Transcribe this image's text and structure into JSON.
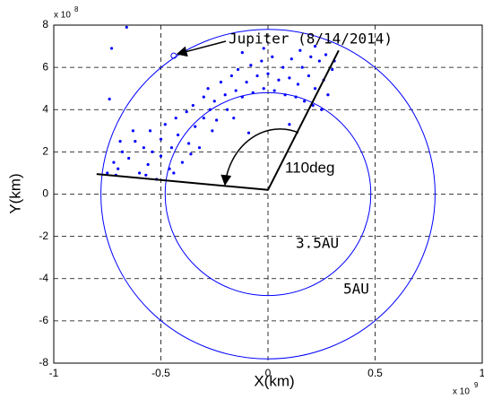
{
  "chart_data": {
    "type": "scatter",
    "x_label": "X(km)",
    "y_label": "Y(km)",
    "x_multiplier": {
      "label": "x 10",
      "exponent": "9"
    },
    "y_multiplier": {
      "label": "x 10",
      "exponent": "8"
    },
    "xlim": [
      -1,
      1
    ],
    "ylim": [
      -8,
      8
    ],
    "xticks": [
      -1,
      -0.5,
      0,
      0.5,
      1
    ],
    "yticks": [
      -8,
      -6,
      -4,
      -2,
      0,
      2,
      4,
      6,
      8
    ],
    "grid": true,
    "series": [
      {
        "color": "#0000ff",
        "x": [
          -0.75,
          -0.72,
          -0.7,
          -0.68,
          -0.73,
          -0.66,
          -0.74,
          -0.65,
          -0.62,
          -0.6,
          -0.58,
          -0.56,
          -0.55,
          -0.52,
          -0.5,
          -0.5,
          -0.48,
          -0.46,
          -0.45,
          -0.43,
          -0.42,
          -0.4,
          -0.38,
          -0.37,
          -0.35,
          -0.34,
          -0.32,
          -0.3,
          -0.3,
          -0.28,
          -0.27,
          -0.25,
          -0.24,
          -0.22,
          -0.2,
          -0.19,
          -0.17,
          -0.15,
          -0.14,
          -0.12,
          -0.1,
          -0.08,
          -0.07,
          -0.05,
          -0.03,
          -0.02,
          0.0,
          0.02,
          0.03,
          0.05,
          0.07,
          0.08,
          0.1,
          0.11,
          0.13,
          0.14,
          0.16,
          0.17,
          0.19,
          0.2,
          0.21,
          0.22,
          0.24,
          0.25,
          0.26,
          0.27,
          0.28,
          0.3,
          0.31,
          -0.44,
          -0.63,
          -0.57,
          -0.36,
          -0.26,
          -0.16,
          -0.09,
          0.1,
          -0.54,
          -0.69,
          -0.71,
          0.15,
          0.22,
          -0.02,
          -0.12
        ],
        "values": [
          1.0,
          1.5,
          1.2,
          2.0,
          6.9,
          7.9,
          4.5,
          1.7,
          2.5,
          1.0,
          2.2,
          1.4,
          3.0,
          0.7,
          1.8,
          2.6,
          3.3,
          1.2,
          2.2,
          3.6,
          2.8,
          1.5,
          3.9,
          2.4,
          4.2,
          3.2,
          2.2,
          4.6,
          3.6,
          5.0,
          4.0,
          4.4,
          3.5,
          5.3,
          4.7,
          4.0,
          5.6,
          4.9,
          5.9,
          4.6,
          5.3,
          6.1,
          4.8,
          5.6,
          6.3,
          5.0,
          5.7,
          6.5,
          4.9,
          5.4,
          6.0,
          4.7,
          5.5,
          6.4,
          4.6,
          5.2,
          6.0,
          4.4,
          5.6,
          6.5,
          4.2,
          5.0,
          6.3,
          4.0,
          5.4,
          6.6,
          4.7,
          5.9,
          6.3,
          1.0,
          3.0,
          0.9,
          1.9,
          3.0,
          3.6,
          2.9,
          3.3,
          2.0,
          2.5,
          0.9,
          6.8,
          7.0,
          6.9,
          6.7
        ]
      }
    ],
    "circles": [
      {
        "label": "3.5AU",
        "r": 0.48
      },
      {
        "label": "5AU",
        "r": 0.78
      }
    ],
    "wedge": {
      "vertex": [
        0,
        0.2
      ],
      "ends": [
        [
          -0.8,
          0.95
        ],
        [
          0.33,
          6.8
        ]
      ],
      "label": "110deg"
    },
    "annotation": {
      "text": "Jupiter (8/14/2014)",
      "x": -0.44,
      "y": 6.55
    }
  }
}
